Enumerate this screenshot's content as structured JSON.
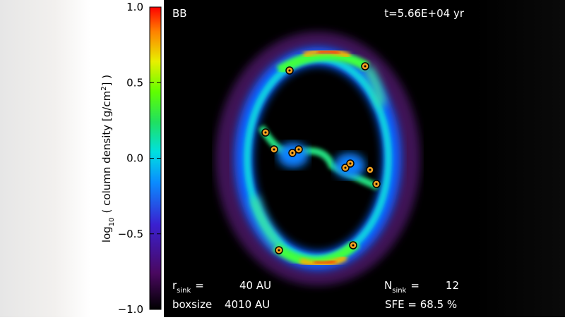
{
  "panel": {
    "label": "BB",
    "time": "t=5.66E+04 yr",
    "info": {
      "rsink_symbol": "r",
      "rsink_sub": "sink",
      "rsink_eq": "=",
      "rsink_value": "40 AU",
      "boxsize_label": "boxsize",
      "boxsize_value": "4010 AU",
      "nsink_symbol": "N",
      "nsink_sub": "sink",
      "nsink_eq": "=",
      "nsink_value": "12",
      "sfe": "SFE = 68.5 %"
    }
  },
  "colorbar": {
    "label_log": "log",
    "label_log_sub": "10",
    "label_main": "( column density [g/cm",
    "label_sup": "2",
    "label_end": "] )",
    "lim": [
      -1,
      1
    ],
    "ticks": [
      {
        "value": 1,
        "label": "1.0"
      },
      0.5,
      {
        "value": 0,
        "label": "0.0"
      },
      {
        "value": -0.5,
        "label": "−0.5"
      },
      {
        "value": -1,
        "label": "−1.0"
      }
    ]
  }
}
